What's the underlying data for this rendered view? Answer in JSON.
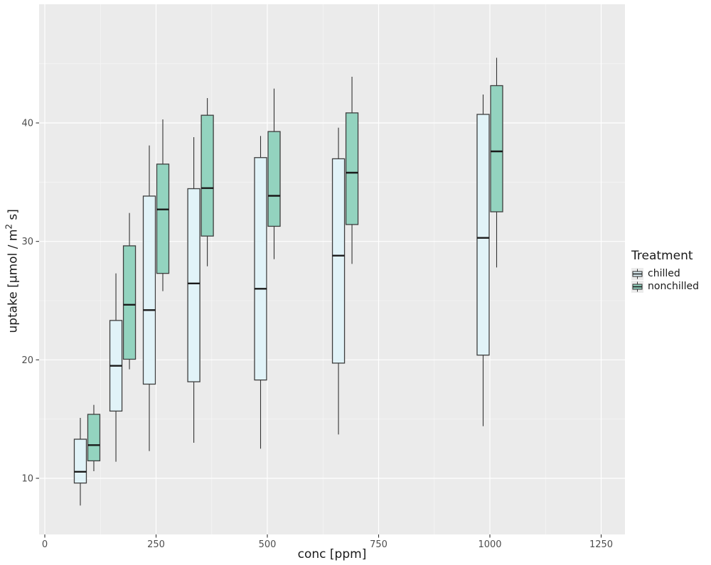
{
  "chart_data": {
    "type": "boxplot",
    "title": "",
    "xlabel": "conc [ppm]",
    "ylabel": "uptake [µmol / m² s]",
    "ylabel_parts": {
      "pre": "uptake [µmol / m",
      "sup": "2",
      "post": " s]"
    },
    "x_ticks": [
      0,
      250,
      500,
      750,
      1000,
      1250
    ],
    "y_ticks": [
      10,
      20,
      30,
      40
    ],
    "x_minor_ticks": [
      125,
      375,
      625,
      875,
      1125
    ],
    "y_minor_ticks": [
      15,
      25,
      35,
      45
    ],
    "xlim": [
      -12.78,
      1303.5
    ],
    "ylim": [
      5.26,
      50.02
    ],
    "grid": "major-minor-white-on-gray",
    "panel_bg": "#EBEBEB",
    "major_grid_color": "#FFFFFF",
    "minor_grid_color": "#F5F5F5",
    "tick_color": "#333333",
    "tick_label_color": "#4D4D4D",
    "box_stroke": "#3D3D3D",
    "median_stroke": "#1A1A1A",
    "whisker_stroke": "#333333",
    "legend": {
      "title": "Treatment",
      "position": "right",
      "items": [
        {
          "label": "chilled",
          "fill": "#E1F3F8"
        },
        {
          "label": "nonchilled",
          "fill": "#93D3BF"
        }
      ]
    },
    "categories": [
      95,
      175,
      250,
      350,
      500,
      675,
      1000
    ],
    "series": [
      {
        "name": "chilled",
        "fill": "#E1F3F8",
        "boxes": [
          {
            "conc": 95,
            "whisker_low": 7.7,
            "q1": 9.6,
            "median": 10.55,
            "q3": 13.3,
            "whisker_high": 15.1
          },
          {
            "conc": 175,
            "whisker_low": 11.4,
            "q1": 15.675,
            "median": 19.5,
            "q3": 23.325,
            "whisker_high": 27.3
          },
          {
            "conc": 250,
            "whisker_low": 12.3,
            "q1": 17.95,
            "median": 24.2,
            "q3": 33.825,
            "whisker_high": 38.1
          },
          {
            "conc": 350,
            "whisker_low": 13.0,
            "q1": 18.15,
            "median": 26.45,
            "q3": 34.45,
            "whisker_high": 38.8
          },
          {
            "conc": 500,
            "whisker_low": 12.5,
            "q1": 18.3,
            "median": 26.0,
            "q3": 37.075,
            "whisker_high": 38.9
          },
          {
            "conc": 675,
            "whisker_low": 13.7,
            "q1": 19.725,
            "median": 28.8,
            "q3": 36.975,
            "whisker_high": 39.6
          },
          {
            "conc": 1000,
            "whisker_low": 14.4,
            "q1": 20.4,
            "median": 30.3,
            "q3": 40.725,
            "whisker_high": 42.4
          }
        ]
      },
      {
        "name": "nonchilled",
        "fill": "#93D3BF",
        "boxes": [
          {
            "conc": 95,
            "whisker_low": 10.6,
            "q1": 11.475,
            "median": 12.8,
            "q3": 15.4,
            "whisker_high": 16.2
          },
          {
            "conc": 175,
            "whisker_low": 19.2,
            "q1": 20.05,
            "median": 24.65,
            "q3": 29.625,
            "whisker_high": 32.4
          },
          {
            "conc": 250,
            "whisker_low": 25.8,
            "q1": 27.3,
            "median": 32.7,
            "q3": 36.525,
            "whisker_high": 40.3
          },
          {
            "conc": 350,
            "whisker_low": 27.9,
            "q1": 30.45,
            "median": 34.5,
            "q3": 40.65,
            "whisker_high": 42.1
          },
          {
            "conc": 500,
            "whisker_low": 28.5,
            "q1": 31.275,
            "median": 33.85,
            "q3": 39.275,
            "whisker_high": 42.9
          },
          {
            "conc": 675,
            "whisker_low": 28.1,
            "q1": 31.425,
            "median": 35.8,
            "q3": 40.85,
            "whisker_high": 43.9
          },
          {
            "conc": 1000,
            "whisker_low": 27.8,
            "q1": 32.5,
            "median": 37.6,
            "q3": 43.15,
            "whisker_high": 45.5
          }
        ]
      }
    ]
  }
}
